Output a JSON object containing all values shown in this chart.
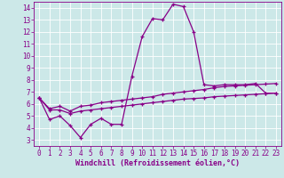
{
  "xlabel": "Windchill (Refroidissement éolien,°C)",
  "background_color": "#cce8e8",
  "grid_color": "#ffffff",
  "line_color": "#880088",
  "x_values": [
    0,
    1,
    2,
    3,
    4,
    5,
    6,
    7,
    8,
    9,
    10,
    11,
    12,
    13,
    14,
    15,
    16,
    17,
    18,
    19,
    20,
    21,
    22,
    23
  ],
  "line1_y": [
    6.5,
    4.7,
    5.0,
    4.2,
    3.2,
    4.3,
    4.8,
    4.3,
    4.3,
    8.3,
    11.6,
    13.1,
    13.0,
    14.3,
    14.1,
    12.0,
    7.6,
    7.5,
    7.6,
    7.6,
    7.6,
    7.7,
    6.9,
    6.9
  ],
  "line2_y": [
    6.5,
    5.6,
    5.8,
    5.4,
    5.8,
    5.9,
    6.1,
    6.2,
    6.3,
    6.4,
    6.5,
    6.6,
    6.8,
    6.9,
    7.0,
    7.1,
    7.2,
    7.35,
    7.45,
    7.5,
    7.55,
    7.6,
    7.65,
    7.7
  ],
  "line3_y": [
    6.5,
    5.5,
    5.5,
    5.2,
    5.4,
    5.5,
    5.6,
    5.7,
    5.8,
    5.9,
    6.0,
    6.1,
    6.2,
    6.3,
    6.4,
    6.45,
    6.5,
    6.6,
    6.65,
    6.7,
    6.75,
    6.8,
    6.85,
    6.9
  ],
  "ylim": [
    2.5,
    14.5
  ],
  "xlim": [
    -0.5,
    23.5
  ],
  "yticks": [
    3,
    4,
    5,
    6,
    7,
    8,
    9,
    10,
    11,
    12,
    13,
    14
  ],
  "xticks": [
    0,
    1,
    2,
    3,
    4,
    5,
    6,
    7,
    8,
    9,
    10,
    11,
    12,
    13,
    14,
    15,
    16,
    17,
    18,
    19,
    20,
    21,
    22,
    23
  ],
  "marker": "+",
  "markersize": 3.5,
  "linewidth": 0.9,
  "tick_fontsize": 5.5,
  "xlabel_fontsize": 6.0,
  "tick_color": "#880088",
  "spine_color": "#880088"
}
